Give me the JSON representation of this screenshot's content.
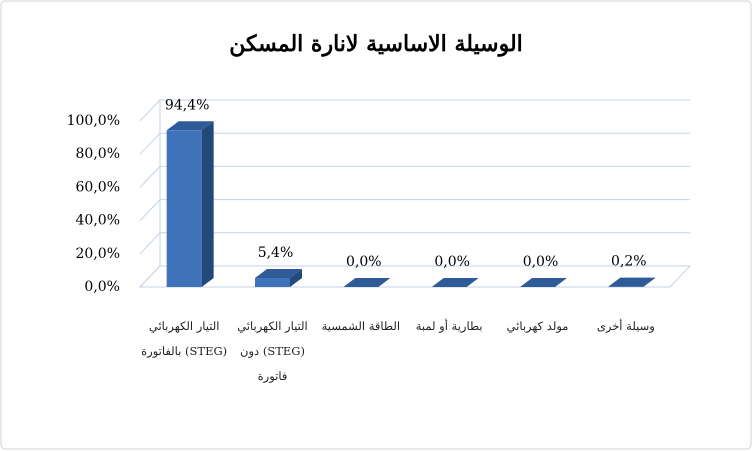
{
  "chart_data": {
    "type": "bar3d",
    "title": "الوسيلة الاساسية لانارة المسكن",
    "categories": [
      "التيار الكهربائي (STEG) بالفاتورة",
      "التيار الكهربائي (STEG) دون فاتورة",
      "الطاقة الشمسية",
      "بطارية أو لمبة",
      "مولد كهربائي",
      "وسيلة أخرى"
    ],
    "values": [
      94.4,
      5.4,
      0,
      0,
      0,
      0.2
    ],
    "value_labels": [
      "94,4%",
      "5,4%",
      "0,0%",
      "0,0%",
      "0,0%",
      "0,2%"
    ],
    "color": "#3f72b8",
    "ylim": [
      0,
      100
    ],
    "yticks": [
      {
        "value": 0,
        "label": "0,0%"
      },
      {
        "value": 20,
        "label": "20,0%"
      },
      {
        "value": 40,
        "label": "40,0%"
      },
      {
        "value": 60,
        "label": "60,0%"
      },
      {
        "value": 80,
        "label": "80,0%"
      },
      {
        "value": 100,
        "label": "100,0%"
      }
    ],
    "grid": true
  }
}
